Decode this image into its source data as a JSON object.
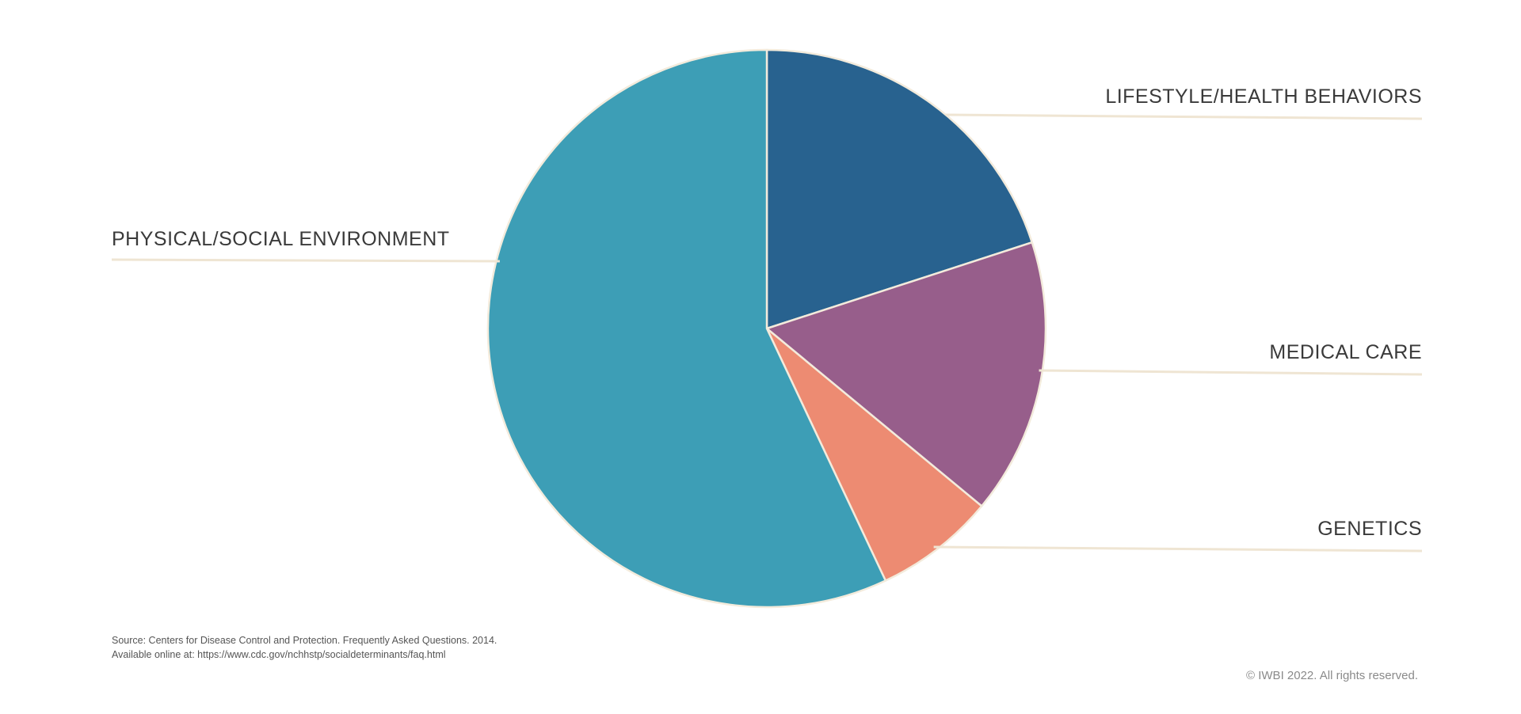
{
  "chart_data": {
    "type": "pie",
    "title": "",
    "slices": [
      {
        "label": "LIFESTYLE/HEALTH BEHAVIORS",
        "value": 20,
        "color": "#28628f"
      },
      {
        "label": "MEDICAL CARE",
        "value": 16,
        "color": "#975e8b"
      },
      {
        "label": "GENETICS",
        "value": 7,
        "color": "#ed8b72"
      },
      {
        "label": "PHYSICAL/SOCIAL ENVIRONMENT",
        "value": 57,
        "color": "#3d9eb6"
      }
    ],
    "start": "12 o'clock, clockwise",
    "leader_line_color": "#efe5d3",
    "label_color": "#3a3a3a"
  },
  "footer": {
    "source_line1": "Source: Centers for Disease Control and Protection. Frequently Asked Questions. 2014.",
    "source_line2": "Available online at: https://www.cdc.gov/nchhstp/socialdeterminants/faq.html",
    "copyright": "© IWBI 2022. All rights reserved."
  }
}
